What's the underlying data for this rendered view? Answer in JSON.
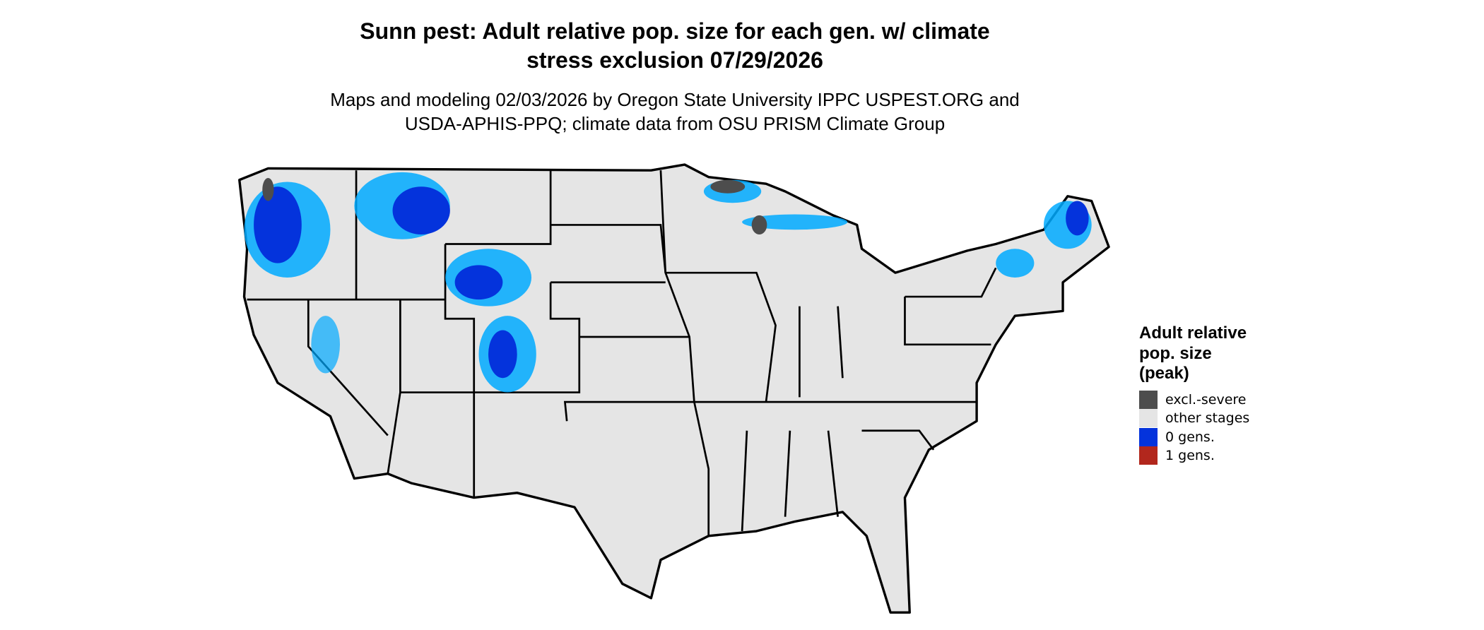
{
  "header": {
    "title": [
      "Sunn pest: Adult relative pop. size for each gen. w/ climate",
      "stress exclusion 07/29/2026"
    ],
    "subtitle": [
      "Maps and modeling 02/03/2026 by Oregon State University IPPC USPEST.ORG and",
      "USDA-APHIS-PPQ; climate data from OSU PRISM Climate Group"
    ]
  },
  "legend": {
    "title": [
      "Adult relative",
      "pop. size",
      "(peak)"
    ],
    "items": [
      {
        "label": "excl.-severe",
        "color": "#4d4d4d"
      },
      {
        "label": "other stages",
        "color": "#e5e5e5"
      },
      {
        "label": "0 gens.",
        "color": "#0433dc"
      },
      {
        "label": "1 gens.",
        "color": "#b2271d"
      }
    ]
  }
}
